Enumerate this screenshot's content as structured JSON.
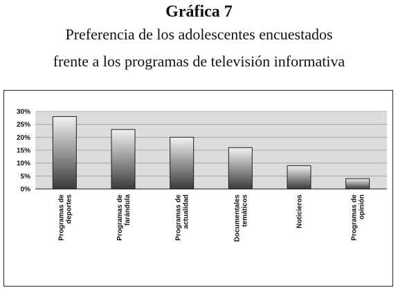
{
  "figure": {
    "number_label": "Gráfica 7",
    "title_line1": "Preferencia de los adolescentes encuestados",
    "title_line2": "frente a los programas de televisión informativa"
  },
  "chart_data": {
    "type": "bar",
    "categories": [
      [
        "Programas de",
        "deportes"
      ],
      [
        "Programas de",
        "farándula"
      ],
      [
        "Programas de",
        "actualidad"
      ],
      [
        "Documentales",
        "temáticos"
      ],
      [
        "Noticieros"
      ],
      [
        "Programas de",
        "opinión"
      ]
    ],
    "values": [
      28,
      23,
      20,
      16,
      9,
      4
    ],
    "yticks": [
      "0%",
      "5%",
      "10%",
      "15%",
      "20%",
      "25%",
      "30%"
    ],
    "ylim": [
      0,
      30
    ],
    "grid": true,
    "bar_color_dark": "#3a3a3a",
    "bar_color_light": "#f2f2f2",
    "plot_background": "#dcdcdc"
  }
}
